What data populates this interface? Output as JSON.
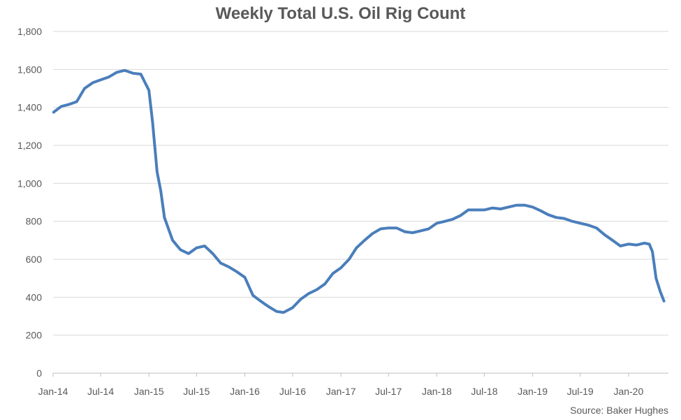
{
  "chart_data": {
    "type": "line",
    "title": "Weekly Total U.S. Oil Rig Count",
    "xlabel": "",
    "ylabel": "",
    "ylim": [
      0,
      1800
    ],
    "yticks": [
      "0",
      "200",
      "400",
      "600",
      "800",
      "1,000",
      "1,200",
      "1,400",
      "1,600",
      "1,800"
    ],
    "xticks": [
      "Jan-14",
      "Jul-14",
      "Jan-15",
      "Jul-15",
      "Jan-16",
      "Jul-16",
      "Jan-17",
      "Jul-17",
      "Jan-18",
      "Jul-18",
      "Jan-19",
      "Jul-19",
      "Jan-20"
    ],
    "grid": true,
    "legend": "none",
    "line_color": "#4a7ebb",
    "series": [
      {
        "x": [
          "2014-01-03",
          "2014-02-01",
          "2014-03-01",
          "2014-04-01",
          "2014-05-01",
          "2014-06-01",
          "2014-07-01",
          "2014-08-01",
          "2014-09-01",
          "2014-10-01",
          "2014-11-01",
          "2014-12-01",
          "2015-01-01",
          "2015-01-15",
          "2015-02-01",
          "2015-02-15",
          "2015-03-01",
          "2015-04-01",
          "2015-05-01",
          "2015-06-01",
          "2015-07-01",
          "2015-08-01",
          "2015-09-01",
          "2015-10-01",
          "2015-11-01",
          "2015-12-01",
          "2016-01-01",
          "2016-02-01",
          "2016-03-01",
          "2016-04-01",
          "2016-05-01",
          "2016-05-27",
          "2016-07-01",
          "2016-08-01",
          "2016-09-01",
          "2016-10-01",
          "2016-11-01",
          "2016-12-01",
          "2017-01-01",
          "2017-02-01",
          "2017-03-01",
          "2017-04-01",
          "2017-05-01",
          "2017-06-01",
          "2017-07-01",
          "2017-08-01",
          "2017-09-01",
          "2017-10-01",
          "2017-11-01",
          "2017-12-01",
          "2018-01-01",
          "2018-02-01",
          "2018-03-01",
          "2018-04-01",
          "2018-05-01",
          "2018-06-01",
          "2018-07-01",
          "2018-08-01",
          "2018-09-01",
          "2018-10-01",
          "2018-11-01",
          "2018-12-01",
          "2019-01-01",
          "2019-02-01",
          "2019-03-01",
          "2019-04-01",
          "2019-05-01",
          "2019-06-01",
          "2019-07-01",
          "2019-08-01",
          "2019-09-01",
          "2019-10-01",
          "2019-11-01",
          "2019-12-01",
          "2020-01-01",
          "2020-02-01",
          "2020-03-01",
          "2020-03-20",
          "2020-04-01",
          "2020-04-15",
          "2020-05-01",
          "2020-05-15"
        ],
        "values": [
          1375,
          1405,
          1415,
          1430,
          1500,
          1530,
          1545,
          1560,
          1585,
          1595,
          1580,
          1575,
          1490,
          1320,
          1060,
          960,
          820,
          700,
          650,
          630,
          660,
          670,
          630,
          580,
          560,
          535,
          505,
          410,
          380,
          350,
          325,
          320,
          345,
          390,
          420,
          440,
          470,
          525,
          555,
          600,
          660,
          700,
          735,
          760,
          765,
          765,
          745,
          740,
          750,
          760,
          790,
          800,
          810,
          830,
          860,
          860,
          860,
          870,
          865,
          875,
          885,
          885,
          875,
          855,
          835,
          820,
          815,
          800,
          790,
          780,
          765,
          730,
          700,
          670,
          680,
          675,
          685,
          680,
          640,
          500,
          430,
          380
        ]
      }
    ]
  },
  "source_note": "Source: Baker Hughes"
}
